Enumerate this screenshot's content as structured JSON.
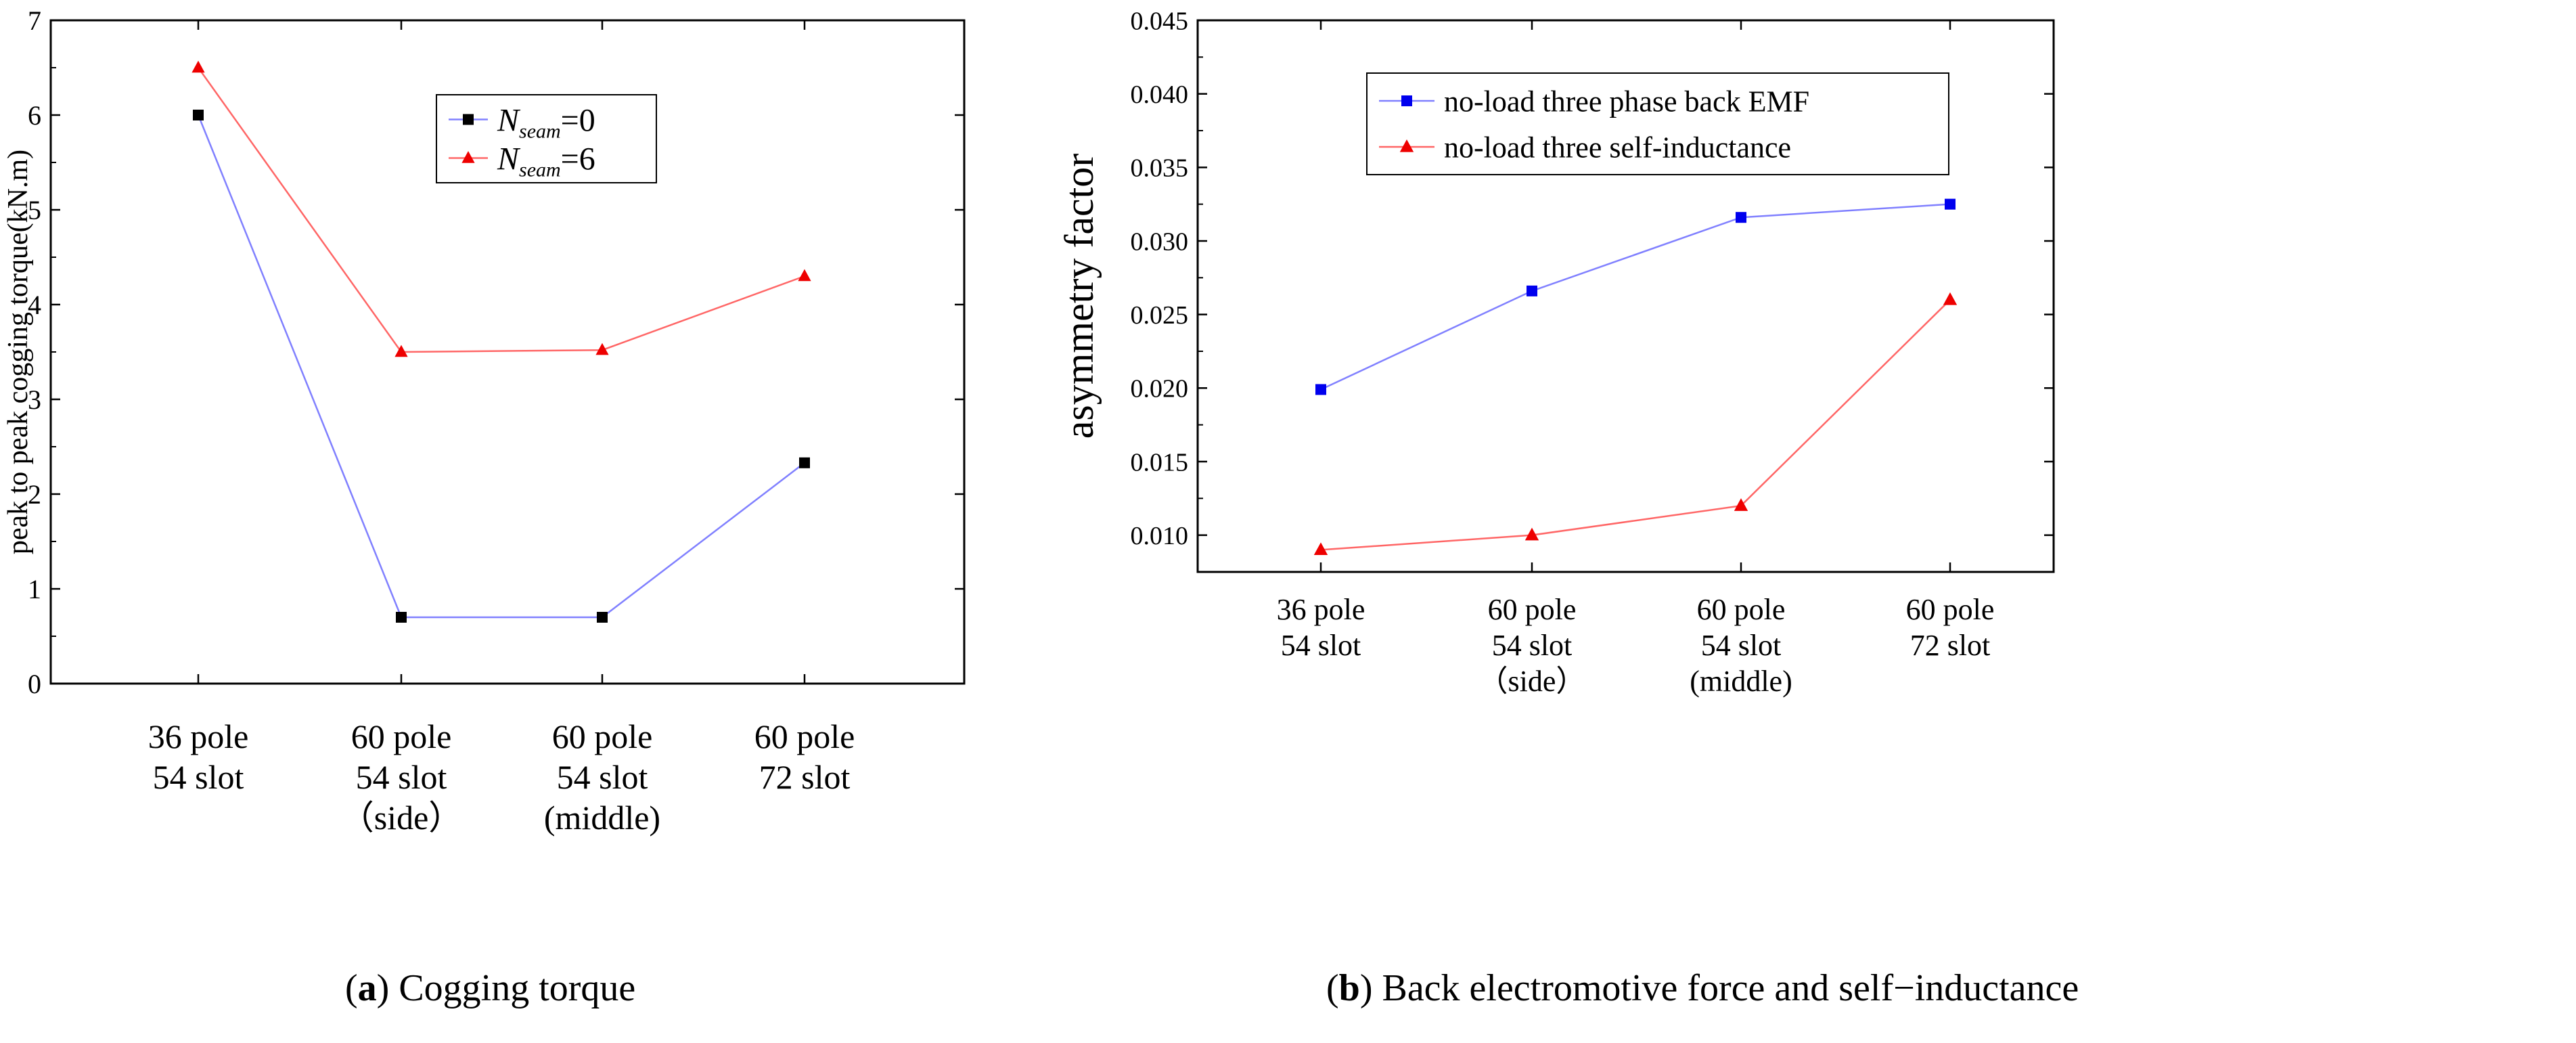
{
  "chart_data": [
    {
      "type": "line",
      "id": "a",
      "categories": [
        [
          "36 pole",
          "54 slot"
        ],
        [
          "60 pole",
          "54 slot",
          "（side）"
        ],
        [
          "60 pole",
          "54 slot",
          "(middle)"
        ],
        [
          "60 pole",
          "72 slot"
        ]
      ],
      "series": [
        {
          "name": "N_seam=0",
          "label_main": "N",
          "label_sub": "seam",
          "label_tail": "=0",
          "values": [
            6.0,
            0.7,
            0.7,
            2.33
          ],
          "color": "#8080ff",
          "marker": "square",
          "marker_color": "#000000"
        },
        {
          "name": "N_seam=6",
          "label_main": "N",
          "label_sub": "seam",
          "label_tail": "=6",
          "values": [
            6.5,
            3.5,
            3.52,
            4.3
          ],
          "color": "#ff6666",
          "marker": "triangle",
          "marker_color": "#ee0000"
        }
      ],
      "ylabel": "peak to peak cogging torque(kN.m)",
      "xlabel": "",
      "ylim": [
        0,
        7
      ],
      "yticks": [
        "0",
        "1",
        "2",
        "3",
        "4",
        "5",
        "6",
        "7"
      ],
      "legend_position": "top-right"
    },
    {
      "type": "line",
      "id": "b",
      "categories": [
        [
          "36 pole",
          "54 slot"
        ],
        [
          "60 pole",
          "54 slot",
          "（side）"
        ],
        [
          "60 pole",
          "54 slot",
          "(middle)"
        ],
        [
          "60 pole",
          "72 slot"
        ]
      ],
      "series": [
        {
          "name": "no-load three phase back EMF",
          "values": [
            0.0199,
            0.0266,
            0.0316,
            0.0325
          ],
          "color": "#8080ff",
          "marker": "square",
          "marker_color": "#0000ee"
        },
        {
          "name": "no-load three self-inductance",
          "values": [
            0.009,
            0.01,
            0.012,
            0.026
          ],
          "color": "#ff6666",
          "marker": "triangle",
          "marker_color": "#ee0000"
        }
      ],
      "ylabel": "asymmetry factor",
      "xlabel": "",
      "ylim": [
        0.0075,
        0.045
      ],
      "yticks": [
        "0.010",
        "0.015",
        "0.020",
        "0.025",
        "0.030",
        "0.035",
        "0.040",
        "0.045"
      ],
      "legend_position": "top-right"
    }
  ],
  "captions": {
    "a": {
      "letter": "a",
      "text": " Cogging torque"
    },
    "b": {
      "letter": "b",
      "text": " Back electromotive force and self−inductance"
    }
  }
}
